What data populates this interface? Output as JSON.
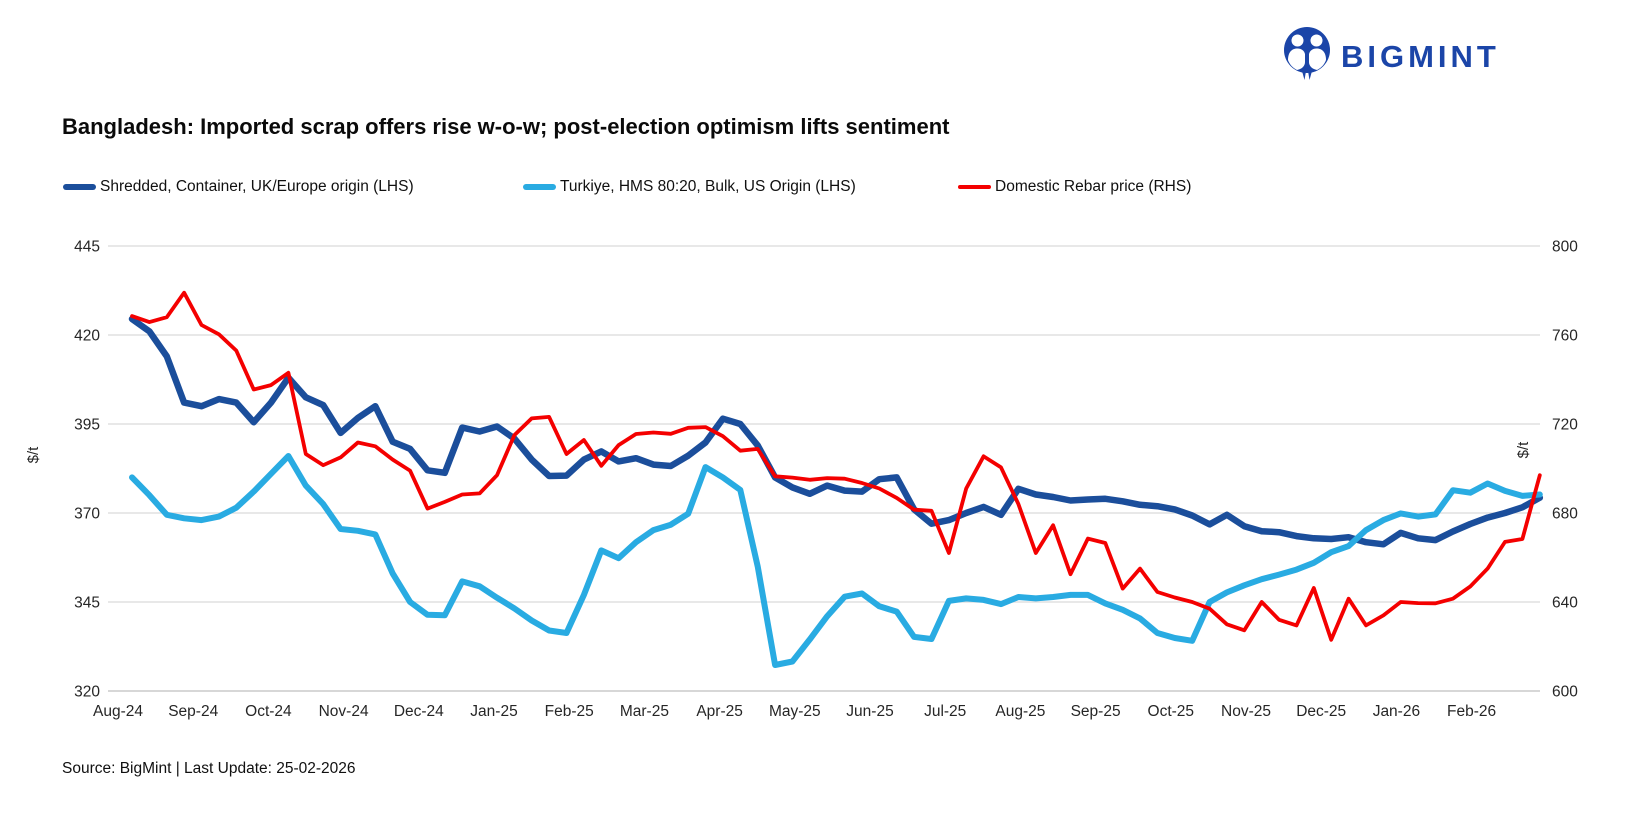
{
  "logo": {
    "text": "BIGMINT",
    "icon": "bigmint-people-icon",
    "color": "#1b45a8"
  },
  "title": "Bangladesh: Imported scrap offers rise w-o-w; post-election optimism lifts sentiment",
  "source": "Source: BigMint | Last Update: 25-02-2026",
  "colors": {
    "blue": "#1b4e9b",
    "cyan": "#29abe2",
    "red": "#f40000",
    "grid": "#d9d9d9",
    "axis_text": "#262626"
  },
  "chart_data": {
    "type": "line",
    "title": "Bangladesh: Imported scrap offers rise w-o-w; post-election optimism lifts sentiment",
    "x_frequency": "weekly",
    "categories": [
      "Aug-24",
      "Sep-24",
      "Oct-24",
      "Nov-24",
      "Dec-24",
      "Jan-25",
      "Feb-25",
      "Mar-25",
      "Apr-25",
      "May-25",
      "Jun-25",
      "Jul-25",
      "Aug-25",
      "Sep-25",
      "Oct-25",
      "Nov-25",
      "Dec-25",
      "Jan-26",
      "Feb-26"
    ],
    "grid": "horizontal",
    "legend_position": "top",
    "left_axis": {
      "unit": "$/t",
      "range": [
        320,
        445
      ],
      "ticks": [
        445,
        420,
        395,
        370,
        345,
        320
      ]
    },
    "right_axis": {
      "unit": "$/t",
      "range": [
        600,
        800
      ],
      "ticks": [
        800,
        760,
        720,
        680,
        640,
        600
      ]
    },
    "series": [
      {
        "name": "Shredded, Container, UK/Europe origin (LHS)",
        "axis": "left",
        "color": "#1b4e9b",
        "values": [
          424.5,
          421,
          414,
          401,
          400,
          402,
          401,
          395.5,
          401,
          408,
          402.5,
          400.3,
          392.5,
          396.7,
          400,
          390,
          388,
          382,
          381.3,
          394,
          392.9,
          394.3,
          390.9,
          385,
          380.4,
          380.5,
          385,
          387.3,
          384.5,
          385.4,
          383.6,
          383.2,
          386.1,
          389.8,
          396.5,
          395,
          389,
          380,
          377.2,
          375.4,
          377.7,
          376.3,
          376,
          379.5,
          380,
          371,
          367,
          368,
          370,
          371.7,
          369.5,
          376.8,
          375.2,
          374.5,
          373.5,
          373.8,
          374,
          373.3,
          372.3,
          371.9,
          371,
          369.3,
          366.8,
          369.5,
          366.3,
          364.9,
          364.6,
          363.5,
          362.9,
          362.7,
          363.2,
          361.8,
          361.2,
          364.4,
          362.9,
          362.4,
          364.8,
          366.9,
          368.7,
          370,
          371.6,
          374.3
        ]
      },
      {
        "name": "Turkiye, HMS 80:20, Bulk, US Origin (LHS)",
        "axis": "left",
        "color": "#29abe2",
        "values": [
          380,
          375,
          369.5,
          368.5,
          368,
          369,
          371.5,
          376,
          381,
          386,
          377.7,
          372.5,
          365.5,
          365,
          364,
          353,
          345,
          341.4,
          341.3,
          350.8,
          349.4,
          346.2,
          343.2,
          339.8,
          337,
          336.3,
          347,
          359.5,
          357.3,
          361.8,
          365.2,
          366.7,
          369.8,
          382.9,
          380,
          376.5,
          355,
          327.3,
          328.3,
          334.5,
          341,
          346.5,
          347.4,
          343.8,
          342.3,
          335.2,
          334.6,
          345.3,
          346,
          345.6,
          344.4,
          346.4,
          346,
          346.4,
          347,
          347,
          344.6,
          342.8,
          340.4,
          336.3,
          334.9,
          334.1,
          345,
          347.7,
          349.7,
          351.4,
          352.7,
          354.1,
          356,
          359,
          360.7,
          365.2,
          368,
          369.9,
          369,
          369.6,
          376.4,
          375.7,
          378.3,
          376.2,
          374.8,
          375.2
        ]
      },
      {
        "name": "Domestic Rebar price (RHS)",
        "axis": "right",
        "color": "#f40000",
        "values": [
          768.5,
          765.8,
          768,
          779,
          764.5,
          760.3,
          753,
          735.5,
          737.5,
          743,
          706.5,
          701.5,
          705,
          711.7,
          710,
          704,
          699,
          682,
          685,
          688.3,
          688.8,
          697,
          715,
          722.5,
          723.2,
          706.5,
          712.8,
          701.2,
          710.5,
          715.5,
          716.2,
          715.6,
          718.3,
          718.6,
          714.5,
          708,
          708.8,
          696.5,
          695.9,
          694.9,
          695.7,
          695.4,
          693.5,
          691,
          686.8,
          681.5,
          681,
          662,
          691,
          705.5,
          700.5,
          684,
          662,
          674.5,
          652.5,
          668.5,
          666.5,
          646,
          655,
          644.5,
          642,
          640,
          637,
          630,
          627.3,
          640,
          632,
          629.5,
          646.3,
          623,
          641.5,
          629.5,
          634,
          640,
          639.5,
          639.4,
          641.5,
          647,
          655,
          667,
          668.3,
          697
        ]
      }
    ]
  }
}
